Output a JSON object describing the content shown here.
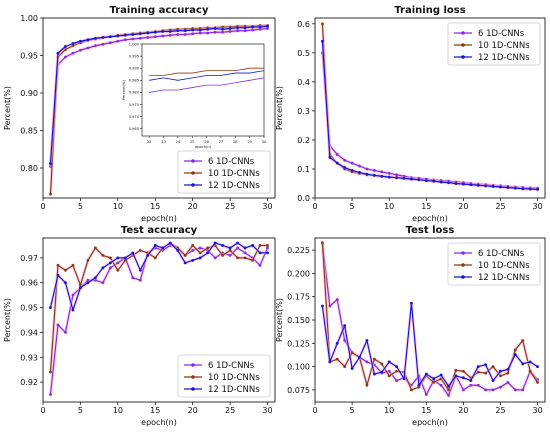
{
  "colors": {
    "s6": "#8a2be2",
    "s10": "#8b3a12",
    "s12": "#1515d6",
    "glow": "#f7b6d8"
  },
  "chart_data": [
    {
      "id": "train_acc",
      "type": "line",
      "title": "Training accuracy",
      "xlabel": "epoch(n)",
      "ylabel": "Percent(%)",
      "xlim": [
        0,
        31
      ],
      "ylim": [
        0.76,
        1.0
      ],
      "xticks": [
        0,
        5,
        10,
        15,
        20,
        25,
        30
      ],
      "yticks": [
        0.8,
        0.85,
        0.9,
        0.95,
        1.0
      ],
      "legend": "bottom-right",
      "x": [
        1,
        2,
        3,
        4,
        5,
        6,
        7,
        8,
        9,
        10,
        11,
        12,
        13,
        14,
        15,
        16,
        17,
        18,
        19,
        20,
        21,
        22,
        23,
        24,
        25,
        26,
        27,
        28,
        29,
        30
      ],
      "series": [
        {
          "name": "6 1D-CNNs",
          "color_key": "s6",
          "values": [
            0.802,
            0.938,
            0.948,
            0.953,
            0.957,
            0.96,
            0.963,
            0.965,
            0.967,
            0.969,
            0.971,
            0.972,
            0.973,
            0.974,
            0.975,
            0.976,
            0.977,
            0.978,
            0.978,
            0.979,
            0.98,
            0.98,
            0.981,
            0.981,
            0.982,
            0.983,
            0.983,
            0.984,
            0.985,
            0.986
          ]
        },
        {
          "name": "10 1D-CNNs",
          "color_key": "s10",
          "values": [
            0.765,
            0.948,
            0.958,
            0.963,
            0.967,
            0.97,
            0.972,
            0.974,
            0.975,
            0.977,
            0.978,
            0.979,
            0.98,
            0.981,
            0.982,
            0.983,
            0.984,
            0.985,
            0.985,
            0.986,
            0.986,
            0.987,
            0.987,
            0.988,
            0.988,
            0.989,
            0.989,
            0.989,
            0.99,
            0.99
          ]
        },
        {
          "name": "12 1D-CNNs",
          "color_key": "s12",
          "values": [
            0.806,
            0.953,
            0.962,
            0.966,
            0.969,
            0.971,
            0.973,
            0.974,
            0.975,
            0.976,
            0.977,
            0.978,
            0.979,
            0.98,
            0.981,
            0.982,
            0.982,
            0.983,
            0.983,
            0.984,
            0.984,
            0.985,
            0.986,
            0.985,
            0.986,
            0.987,
            0.987,
            0.988,
            0.988,
            0.989
          ]
        }
      ],
      "inset": {
        "xlabel": "epoch(n)",
        "ylabel": "Percent(%)",
        "xlim": [
          21.5,
          30
        ],
        "ylim": [
          0.962,
          1.0
        ],
        "xticks": [
          22,
          23,
          24,
          25,
          26,
          27,
          28,
          29,
          30
        ],
        "yticks": [
          0.965,
          0.97,
          0.975,
          0.98,
          0.985,
          0.99,
          0.995,
          1.0
        ],
        "x": [
          22,
          23,
          24,
          25,
          26,
          27,
          28,
          29,
          30
        ],
        "series": [
          {
            "color_key": "s6",
            "values": [
              0.98,
              0.981,
              0.981,
              0.982,
              0.983,
              0.983,
              0.984,
              0.985,
              0.986
            ]
          },
          {
            "color_key": "s10",
            "values": [
              0.987,
              0.987,
              0.988,
              0.988,
              0.989,
              0.989,
              0.989,
              0.99,
              0.99
            ]
          },
          {
            "color_key": "s12",
            "values": [
              0.985,
              0.986,
              0.985,
              0.986,
              0.987,
              0.987,
              0.988,
              0.988,
              0.989
            ]
          }
        ]
      }
    },
    {
      "id": "train_loss",
      "type": "line",
      "title": "Training loss",
      "xlabel": "epoch(n)",
      "ylabel": "Percent(%)",
      "xlim": [
        0,
        31
      ],
      "ylim": [
        0,
        0.62
      ],
      "xticks": [
        0,
        5,
        10,
        15,
        20,
        25,
        30
      ],
      "yticks": [
        0.0,
        0.1,
        0.2,
        0.3,
        0.4,
        0.5,
        0.6
      ],
      "legend": "top-right",
      "x": [
        1,
        2,
        3,
        4,
        5,
        6,
        7,
        8,
        9,
        10,
        11,
        12,
        13,
        14,
        15,
        16,
        17,
        18,
        19,
        20,
        21,
        22,
        23,
        24,
        25,
        26,
        27,
        28,
        29,
        30
      ],
      "series": [
        {
          "name": "6 1D-CNNs",
          "color_key": "s6",
          "values": [
            0.5,
            0.18,
            0.15,
            0.13,
            0.12,
            0.11,
            0.1,
            0.095,
            0.09,
            0.085,
            0.08,
            0.075,
            0.07,
            0.068,
            0.065,
            0.062,
            0.06,
            0.058,
            0.055,
            0.053,
            0.05,
            0.048,
            0.046,
            0.044,
            0.042,
            0.04,
            0.038,
            0.036,
            0.035,
            0.034
          ]
        },
        {
          "name": "10 1D-CNNs",
          "color_key": "s10",
          "values": [
            0.6,
            0.15,
            0.12,
            0.1,
            0.09,
            0.085,
            0.08,
            0.078,
            0.075,
            0.072,
            0.07,
            0.067,
            0.065,
            0.063,
            0.06,
            0.058,
            0.055,
            0.053,
            0.05,
            0.048,
            0.046,
            0.044,
            0.042,
            0.04,
            0.038,
            0.036,
            0.034,
            0.032,
            0.031,
            0.03
          ]
        },
        {
          "name": "12 1D-CNNs",
          "color_key": "s12",
          "values": [
            0.54,
            0.14,
            0.12,
            0.105,
            0.095,
            0.088,
            0.082,
            0.078,
            0.075,
            0.072,
            0.07,
            0.068,
            0.065,
            0.063,
            0.06,
            0.058,
            0.055,
            0.053,
            0.05,
            0.048,
            0.046,
            0.044,
            0.042,
            0.04,
            0.038,
            0.036,
            0.034,
            0.032,
            0.031,
            0.03
          ]
        }
      ]
    },
    {
      "id": "test_acc",
      "type": "line",
      "title": "Test accuracy",
      "xlabel": "epoch(n)",
      "ylabel": "Percent(%)",
      "xlim": [
        0,
        31
      ],
      "ylim": [
        0.912,
        0.978
      ],
      "xticks": [
        0,
        5,
        10,
        15,
        20,
        25,
        30
      ],
      "yticks": [
        0.92,
        0.93,
        0.94,
        0.95,
        0.96,
        0.97
      ],
      "legend": "bottom-right",
      "x": [
        1,
        2,
        3,
        4,
        5,
        6,
        7,
        8,
        9,
        10,
        11,
        12,
        13,
        14,
        15,
        16,
        17,
        18,
        19,
        20,
        21,
        22,
        23,
        24,
        25,
        26,
        27,
        28,
        29,
        30
      ],
      "series": [
        {
          "name": "6 1D-CNNs",
          "color_key": "s6",
          "values": [
            0.915,
            0.943,
            0.94,
            0.955,
            0.958,
            0.961,
            0.961,
            0.96,
            0.966,
            0.968,
            0.97,
            0.962,
            0.961,
            0.972,
            0.974,
            0.973,
            0.975,
            0.974,
            0.971,
            0.973,
            0.974,
            0.973,
            0.97,
            0.972,
            0.971,
            0.974,
            0.972,
            0.97,
            0.967,
            0.974
          ]
        },
        {
          "name": "10 1D-CNNs",
          "color_key": "s10",
          "values": [
            0.924,
            0.967,
            0.965,
            0.967,
            0.959,
            0.969,
            0.974,
            0.971,
            0.97,
            0.965,
            0.969,
            0.971,
            0.973,
            0.972,
            0.97,
            0.974,
            0.976,
            0.974,
            0.971,
            0.975,
            0.972,
            0.974,
            0.975,
            0.971,
            0.973,
            0.97,
            0.97,
            0.969,
            0.975,
            0.975
          ]
        },
        {
          "name": "12 1D-CNNs",
          "color_key": "s12",
          "values": [
            0.95,
            0.963,
            0.96,
            0.949,
            0.958,
            0.96,
            0.962,
            0.966,
            0.968,
            0.97,
            0.97,
            0.972,
            0.965,
            0.971,
            0.975,
            0.974,
            0.976,
            0.973,
            0.968,
            0.969,
            0.97,
            0.972,
            0.976,
            0.975,
            0.974,
            0.976,
            0.974,
            0.975,
            0.972,
            0.972
          ]
        }
      ]
    },
    {
      "id": "test_loss",
      "type": "line",
      "title": "Test loss",
      "xlabel": "epoch(n)",
      "ylabel": "Percent(%)",
      "xlim": [
        0,
        31
      ],
      "ylim": [
        0.062,
        0.238
      ],
      "xticks": [
        0,
        5,
        10,
        15,
        20,
        25,
        30
      ],
      "yticks": [
        0.075,
        0.1,
        0.125,
        0.15,
        0.175,
        0.2,
        0.225
      ],
      "legend": "top-right",
      "x": [
        1,
        2,
        3,
        4,
        5,
        6,
        7,
        8,
        9,
        10,
        11,
        12,
        13,
        14,
        15,
        16,
        17,
        18,
        19,
        20,
        21,
        22,
        23,
        24,
        25,
        26,
        27,
        28,
        29,
        30
      ],
      "series": [
        {
          "name": "6 1D-CNNs",
          "color_key": "s6",
          "values": [
            0.232,
            0.165,
            0.172,
            0.128,
            0.115,
            0.11,
            0.105,
            0.102,
            0.093,
            0.095,
            0.085,
            0.088,
            0.08,
            0.09,
            0.07,
            0.085,
            0.08,
            0.069,
            0.09,
            0.075,
            0.08,
            0.08,
            0.075,
            0.075,
            0.078,
            0.083,
            0.075,
            0.075,
            0.095,
            0.086
          ]
        },
        {
          "name": "10 1D-CNNs",
          "color_key": "s10",
          "values": [
            0.233,
            0.105,
            0.108,
            0.1,
            0.115,
            0.11,
            0.08,
            0.108,
            0.103,
            0.09,
            0.095,
            0.094,
            0.075,
            0.078,
            0.09,
            0.083,
            0.087,
            0.075,
            0.096,
            0.095,
            0.088,
            0.094,
            0.093,
            0.1,
            0.09,
            0.093,
            0.118,
            0.128,
            0.095,
            0.083
          ]
        },
        {
          "name": "12 1D-CNNs",
          "color_key": "s12",
          "values": [
            0.165,
            0.105,
            0.125,
            0.144,
            0.098,
            0.11,
            0.128,
            0.092,
            0.094,
            0.105,
            0.1,
            0.087,
            0.168,
            0.08,
            0.092,
            0.087,
            0.091,
            0.079,
            0.09,
            0.088,
            0.085,
            0.1,
            0.102,
            0.085,
            0.095,
            0.097,
            0.113,
            0.103,
            0.105,
            0.1
          ]
        }
      ]
    }
  ]
}
